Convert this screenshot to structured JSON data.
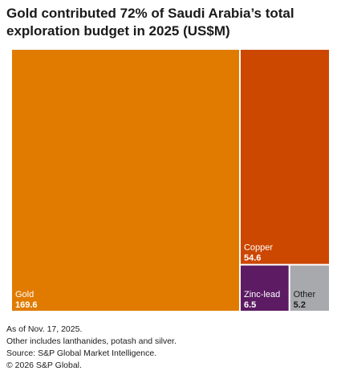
{
  "chart_data": {
    "type": "treemap",
    "title": "Gold contributed 72% of Saudi Arabia’s total exploration budget in 2025 (US$M)",
    "unit": "US$M",
    "items": [
      {
        "name": "Gold",
        "value": 169.6,
        "color": "#e07b00",
        "text_color": "#ffffff"
      },
      {
        "name": "Copper",
        "value": 54.6,
        "color": "#cc4700",
        "text_color": "#ffffff"
      },
      {
        "name": "Zinc-lead",
        "value": 6.5,
        "color": "#5c1b63",
        "text_color": "#ffffff"
      },
      {
        "name": "Other",
        "value": 5.2,
        "color": "#a8a9ad",
        "text_color": "#1a1a1a"
      }
    ]
  },
  "notes": [
    "As of Nov. 17, 2025.",
    "Other includes lanthanides, potash and silver.",
    "Source: S&P Global Market Intelligence.",
    "© 2026 S&P Global."
  ]
}
